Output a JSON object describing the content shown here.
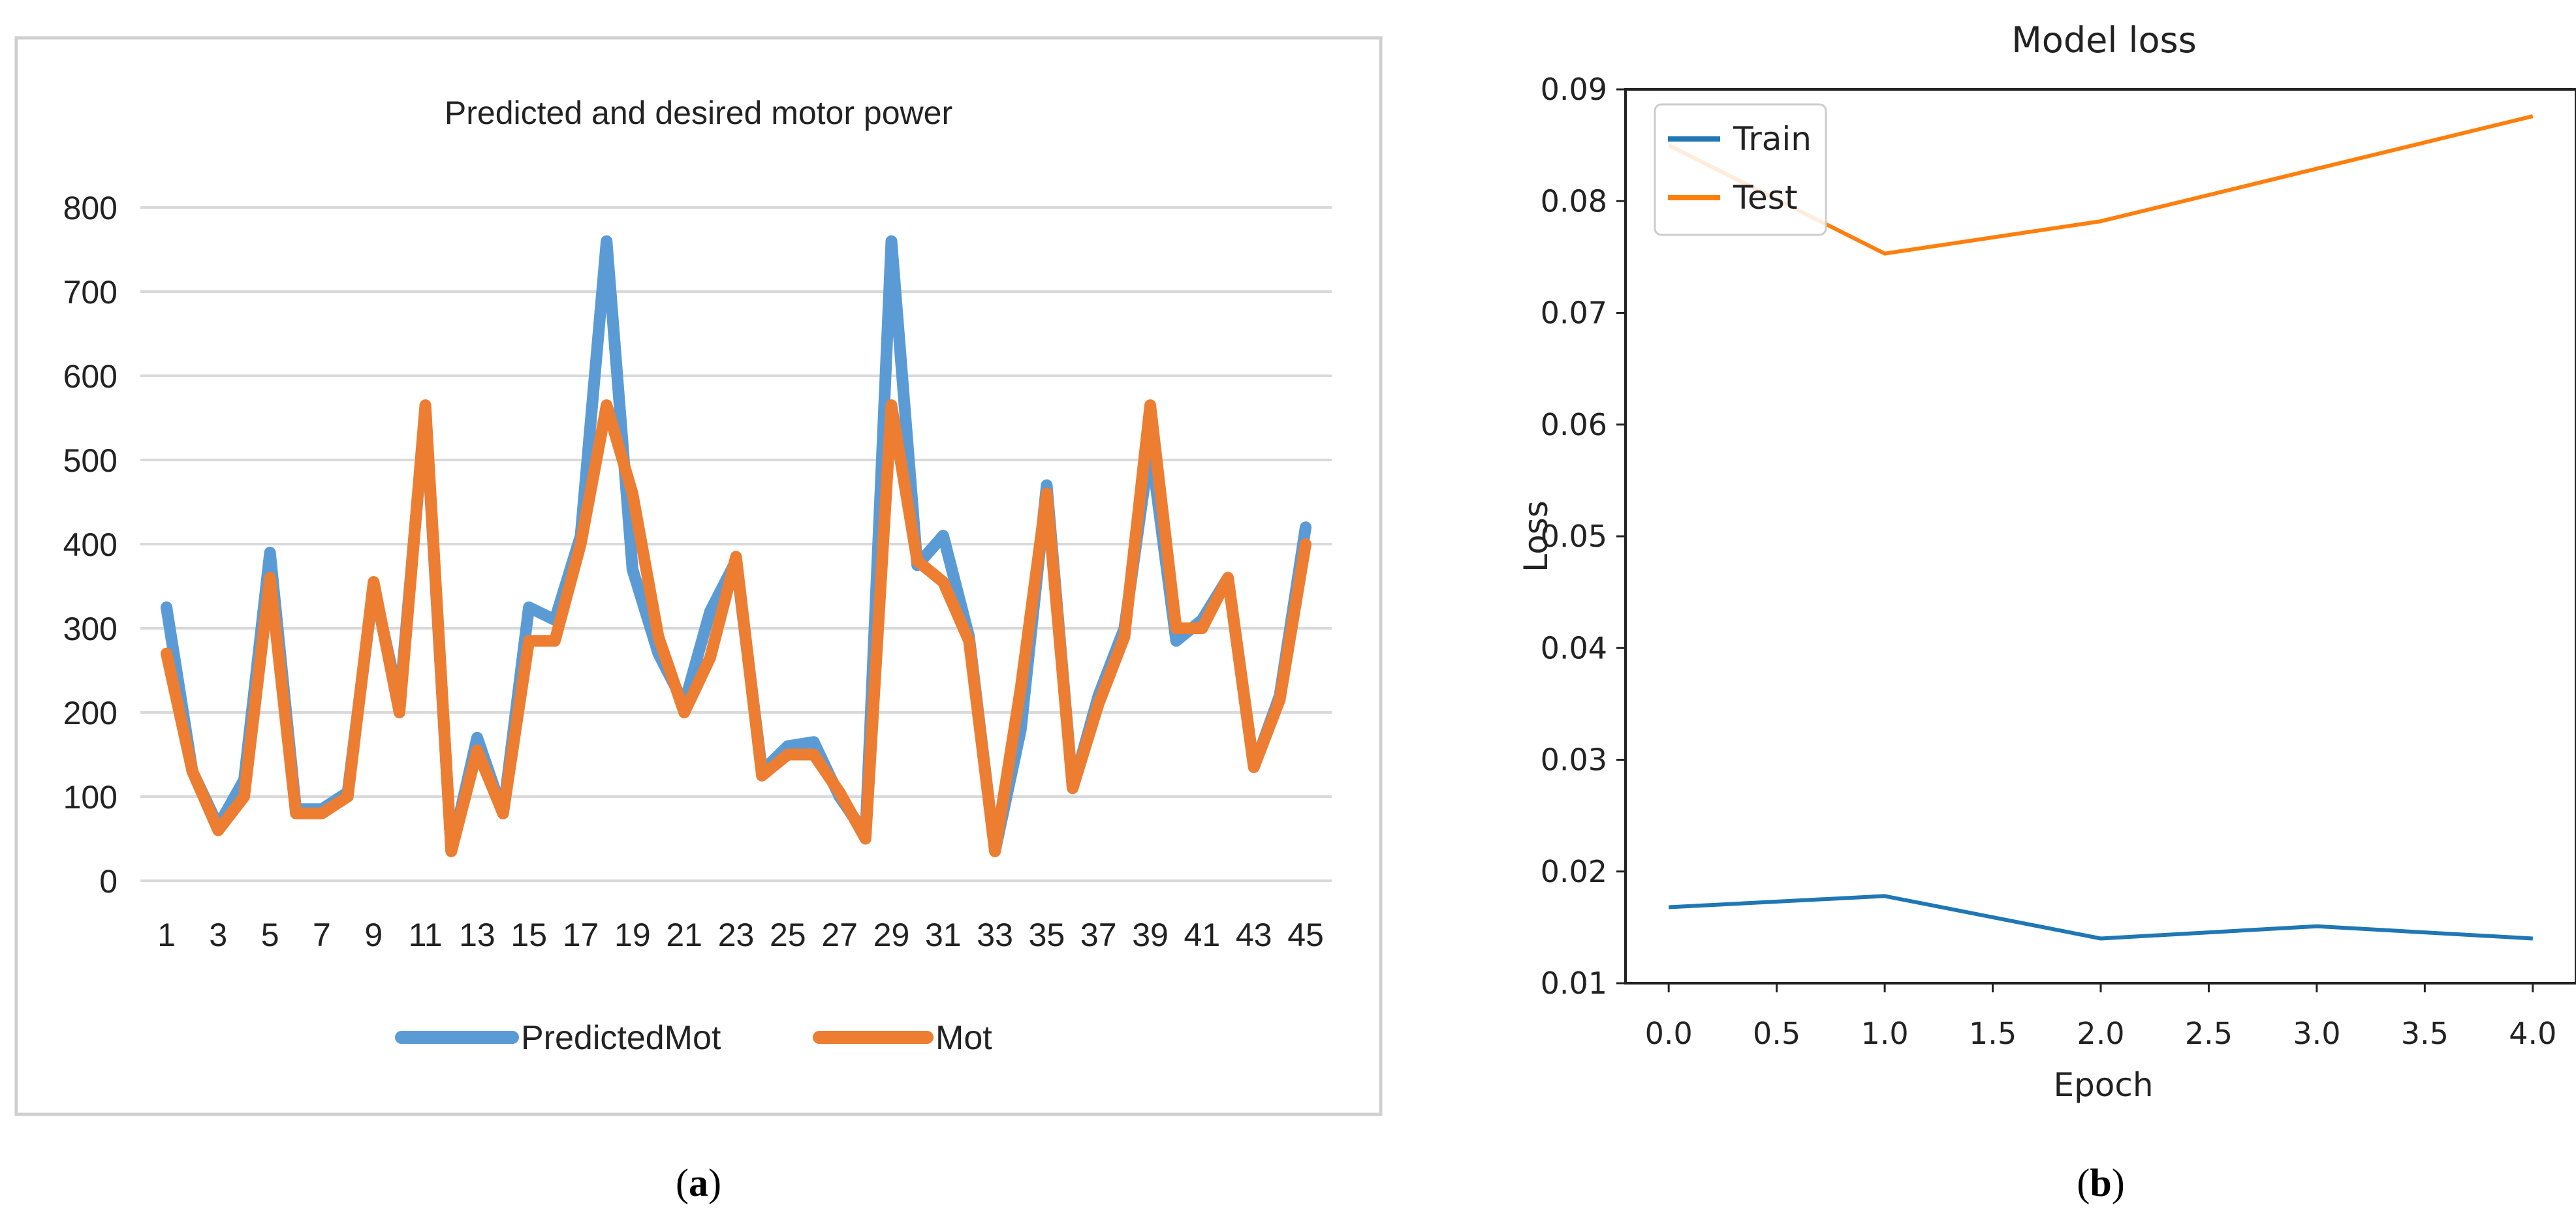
{
  "panels": {
    "a": {
      "label": "(a)",
      "label_bold": "a"
    },
    "b": {
      "label": "(b)",
      "label_bold": "b"
    }
  },
  "colors": {
    "predicted": "#5B9BD5",
    "mot": "#ED7D31",
    "train": "#1F77B4",
    "test": "#FF7F0E",
    "grid": "#D9D9D9",
    "frame": "#D0D0D0"
  },
  "chart_data": [
    {
      "id": "a",
      "type": "line",
      "title": "Predicted and desired motor power",
      "xlabel": "",
      "ylabel": "",
      "ylim": [
        0,
        800
      ],
      "yticks": [
        0,
        100,
        200,
        300,
        400,
        500,
        600,
        700,
        800
      ],
      "xtick_labels": [
        "1",
        "3",
        "5",
        "7",
        "9",
        "11",
        "13",
        "15",
        "17",
        "19",
        "21",
        "23",
        "25",
        "27",
        "29",
        "31",
        "33",
        "35",
        "37",
        "39",
        "41",
        "43",
        "45"
      ],
      "x": [
        1,
        2,
        3,
        4,
        5,
        6,
        7,
        8,
        9,
        10,
        11,
        12,
        13,
        14,
        15,
        16,
        17,
        18,
        19,
        20,
        21,
        22,
        23,
        24,
        25,
        26,
        27,
        28,
        29,
        30,
        31,
        32,
        33,
        34,
        35,
        36,
        37,
        38,
        39,
        40,
        41,
        42,
        43,
        44,
        45
      ],
      "legend_position": "bottom",
      "series": [
        {
          "name": "PredictedMot",
          "values": [
            325,
            130,
            65,
            120,
            390,
            85,
            85,
            105,
            350,
            210,
            560,
            35,
            170,
            80,
            325,
            310,
            410,
            760,
            370,
            270,
            210,
            320,
            380,
            130,
            160,
            165,
            100,
            55,
            760,
            375,
            410,
            290,
            35,
            180,
            470,
            110,
            220,
            300,
            520,
            285,
            310,
            360,
            135,
            220,
            420
          ]
        },
        {
          "name": "Mot",
          "values": [
            270,
            130,
            60,
            100,
            360,
            80,
            80,
            100,
            355,
            200,
            565,
            35,
            155,
            80,
            285,
            285,
            400,
            565,
            460,
            290,
            200,
            265,
            385,
            125,
            150,
            150,
            105,
            50,
            565,
            380,
            355,
            285,
            35,
            230,
            460,
            110,
            210,
            290,
            565,
            300,
            300,
            360,
            135,
            215,
            400
          ]
        }
      ]
    },
    {
      "id": "b",
      "type": "line",
      "title": "Model loss",
      "xlabel": "Epoch",
      "ylabel": "Loss",
      "xlim": [
        -0.2,
        4.2
      ],
      "ylim": [
        0.01,
        0.09
      ],
      "xtick_labels": [
        "0.0",
        "0.5",
        "1.0",
        "1.5",
        "2.0",
        "2.5",
        "3.0",
        "3.5",
        "4.0"
      ],
      "ytick_labels": [
        "0.01",
        "0.02",
        "0.03",
        "0.04",
        "0.05",
        "0.06",
        "0.07",
        "0.08",
        "0.09"
      ],
      "x": [
        0,
        1,
        2,
        3,
        4
      ],
      "legend_position": "top-left",
      "series": [
        {
          "name": "Train",
          "values": [
            0.0168,
            0.0178,
            0.014,
            0.0151,
            0.014
          ]
        },
        {
          "name": "Test",
          "values": [
            0.085,
            0.0753,
            0.0782,
            0.0829,
            0.0876
          ]
        }
      ]
    }
  ]
}
